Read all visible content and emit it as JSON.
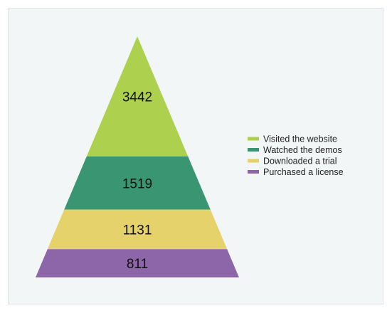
{
  "chart_data": {
    "type": "pyramid",
    "title": "",
    "categories": [
      "Visited the website",
      "Watched the demos",
      "Downloaded a trial",
      "Purchased a license"
    ],
    "values": [
      3442,
      1519,
      1131,
      811
    ],
    "colors": [
      "#aed04f",
      "#3a9672",
      "#e6d26b",
      "#8c66a8"
    ],
    "legend": {
      "position": "right",
      "entries": [
        "Visited the website",
        "Watched the demos",
        "Downloaded a trial",
        "Purchased a license"
      ]
    },
    "grid": false
  }
}
